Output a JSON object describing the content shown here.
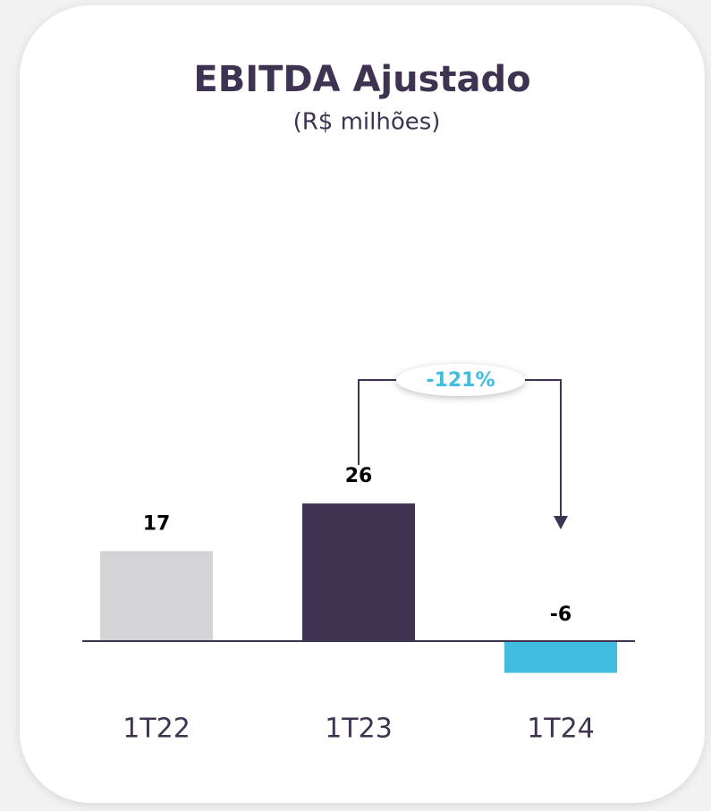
{
  "chart_data": {
    "type": "bar",
    "title": "EBITDA Ajustado",
    "subtitle": "(R$ milhões)",
    "categories": [
      "1T22",
      "1T23",
      "1T24"
    ],
    "values": [
      17,
      26,
      -6
    ],
    "colors": [
      "#d4d4d6",
      "#3f3352",
      "#41bde0"
    ],
    "annotations": [
      "-121%"
    ]
  }
}
